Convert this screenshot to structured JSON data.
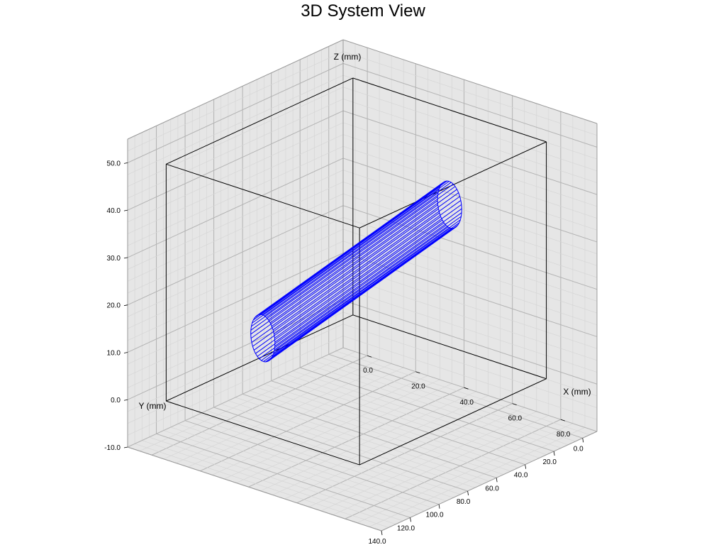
{
  "chart_data": {
    "type": "3d-wireframe",
    "title": "3D System View",
    "axes": {
      "x": {
        "label": "X (mm)",
        "ticks": [
          "0.0",
          "20.0",
          "40.0",
          "60.0",
          "80.0"
        ],
        "tick_values": [
          0,
          20,
          40,
          60,
          80
        ],
        "lim": [
          -10,
          95
        ]
      },
      "y": {
        "label": "Y (mm)",
        "ticks": [
          "0.0",
          "20.0",
          "40.0",
          "60.0",
          "80.0",
          "100.0",
          "120.0",
          "140.0"
        ],
        "tick_values": [
          0,
          20,
          40,
          60,
          80,
          100,
          120,
          140
        ],
        "lim": [
          -10,
          140
        ]
      },
      "z": {
        "label": "Z (mm)",
        "ticks": [
          "-10.0",
          "0.0",
          "10.0",
          "20.0",
          "30.0",
          "40.0",
          "50.0"
        ],
        "tick_values": [
          -10,
          0,
          10,
          20,
          30,
          40,
          50
        ],
        "lim": [
          -10,
          55
        ]
      }
    },
    "grid": true,
    "box": {
      "x": [
        0,
        80
      ],
      "y": [
        0,
        130
      ],
      "z": [
        0,
        50
      ]
    },
    "cylinder": {
      "color": "#0000ff",
      "axis_start": [
        40,
        0,
        30
      ],
      "axis_end": [
        40,
        130,
        20
      ],
      "radius": 5,
      "segments": 36
    }
  }
}
